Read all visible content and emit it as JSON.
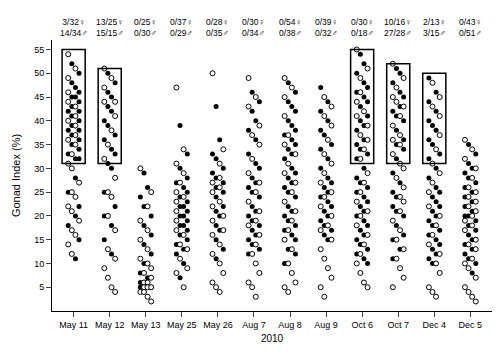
{
  "chart_data": {
    "type": "scatter",
    "y_label": "Gonad Index (%)",
    "x_label": "2010",
    "categories": [
      "May 11",
      "May 12",
      "May 13",
      "May 25",
      "May 26",
      "Aug 7",
      "Aug 8",
      "Aug 9",
      "Oct 6",
      "Oct 7",
      "Dec 4",
      "Dec 5"
    ],
    "ylim": [
      0,
      57
    ],
    "yticks": [
      5,
      10,
      15,
      20,
      25,
      30,
      35,
      40,
      45,
      50,
      55
    ],
    "grid": false,
    "series": [
      {
        "marker": "filled",
        "color": "#000000",
        "values": [
          [
            52,
            50,
            48,
            47,
            46,
            45,
            45,
            44,
            43,
            42,
            42,
            41,
            40,
            39,
            38,
            38,
            37,
            36,
            35,
            34,
            33,
            32,
            32,
            28,
            25,
            22,
            20,
            18,
            15,
            11
          ],
          [
            50,
            48,
            46,
            45,
            43,
            42,
            40,
            39,
            37,
            36,
            34,
            33,
            31,
            30,
            25,
            22,
            20,
            18,
            15,
            12
          ],
          [
            29,
            26,
            24,
            22,
            20,
            18,
            16,
            14,
            12,
            10,
            8,
            7,
            6,
            5,
            5
          ],
          [
            39,
            33,
            30,
            28,
            27,
            26,
            25,
            24,
            23,
            22,
            22,
            21,
            20,
            20,
            19,
            18,
            18,
            17,
            16,
            15,
            14,
            13,
            12,
            10,
            7
          ],
          [
            43,
            36,
            33,
            32,
            30,
            29,
            28,
            27,
            26,
            25,
            24,
            22,
            21,
            20,
            18,
            17,
            15,
            13,
            11
          ],
          [
            46,
            44,
            42,
            40,
            38,
            36,
            33,
            31,
            30,
            28,
            27,
            26,
            25,
            24,
            22,
            21,
            20,
            19,
            18,
            17,
            16,
            15,
            14,
            13,
            12
          ],
          [
            48,
            46,
            44,
            43,
            42,
            40,
            39,
            38,
            37,
            36,
            35,
            34,
            33,
            32,
            30,
            29,
            28,
            27,
            26,
            25,
            24,
            22,
            21,
            20,
            19,
            18,
            17,
            16,
            15,
            13,
            12,
            10
          ],
          [
            47,
            44,
            42,
            40,
            38,
            37,
            35,
            34,
            32,
            30,
            28,
            27,
            26,
            25,
            24,
            23,
            22,
            21,
            20,
            19,
            18,
            17,
            16,
            15
          ],
          [
            54,
            52,
            50,
            48,
            47,
            46,
            45,
            44,
            43,
            41,
            40,
            39,
            38,
            36,
            35,
            34,
            33,
            32,
            30,
            28,
            27,
            26,
            25,
            24,
            23,
            22,
            21,
            20,
            19,
            18,
            17,
            16,
            15,
            14,
            13,
            12,
            11,
            10
          ],
          [
            51,
            50,
            48,
            46,
            45,
            43,
            42,
            41,
            40,
            38,
            36,
            35,
            34,
            32,
            29,
            27,
            25,
            24,
            22,
            21,
            20,
            18,
            16,
            15,
            13,
            11
          ],
          [
            49,
            46,
            44,
            42,
            40,
            39,
            38,
            36,
            35,
            33,
            32,
            30,
            28,
            26,
            25,
            24,
            23,
            22,
            21,
            20,
            19,
            18,
            17,
            16,
            15,
            14,
            13,
            12,
            11,
            10
          ],
          [
            35,
            33,
            31,
            30,
            29,
            28,
            27,
            26,
            25,
            24,
            23,
            22,
            21,
            20,
            20,
            19,
            18,
            17,
            16,
            15,
            14,
            13,
            12,
            11,
            10,
            8
          ]
        ]
      },
      {
        "marker": "open",
        "color": "#ffffff",
        "values": [
          [
            54,
            51,
            49,
            46,
            44,
            43,
            41,
            40,
            39,
            37,
            36,
            35,
            33,
            31,
            30,
            27,
            25,
            24,
            22,
            21,
            19,
            17,
            16,
            14,
            12
          ],
          [
            51,
            49,
            47,
            44,
            44,
            41,
            38,
            35,
            32,
            28,
            25,
            24,
            20,
            17,
            13,
            11,
            9,
            7,
            5,
            4
          ],
          [
            30,
            25,
            22,
            19,
            17,
            15,
            13,
            11,
            10,
            9,
            8,
            7,
            6,
            6,
            5,
            5,
            5,
            4,
            4,
            3,
            2
          ],
          [
            47,
            34,
            31,
            29,
            27,
            25,
            24,
            23,
            21,
            19,
            17,
            16,
            14,
            13,
            11,
            9,
            8,
            5
          ],
          [
            50,
            34,
            31,
            28,
            27,
            26,
            25,
            23,
            22,
            20,
            19,
            17,
            16,
            14,
            12,
            10,
            8,
            6,
            5,
            4
          ],
          [
            49,
            45,
            43,
            39,
            37,
            35,
            32,
            29,
            27,
            25,
            23,
            21,
            19,
            18,
            16,
            14,
            12,
            10,
            8,
            6,
            5,
            3
          ],
          [
            49,
            47,
            45,
            41,
            37,
            35,
            33,
            31,
            29,
            27,
            25,
            23,
            21,
            19,
            17,
            15,
            13,
            10,
            8,
            6,
            5,
            4
          ],
          [
            45,
            43,
            41,
            39,
            36,
            33,
            31,
            29,
            27,
            25,
            24,
            22,
            20,
            18,
            17,
            15,
            13,
            11,
            9,
            7,
            5,
            3
          ],
          [
            55,
            51,
            49,
            46,
            44,
            42,
            41,
            39,
            37,
            36,
            34,
            32,
            29,
            27,
            25,
            23,
            21,
            20,
            18,
            16,
            14,
            12,
            10,
            8,
            6,
            5
          ],
          [
            52,
            49,
            47,
            45,
            44,
            43,
            41,
            39,
            37,
            36,
            35,
            33,
            31,
            30,
            28,
            26,
            24,
            23,
            21,
            19,
            17,
            15,
            13,
            11,
            9,
            7,
            5
          ],
          [
            48,
            45,
            43,
            41,
            37,
            34,
            31,
            29,
            27,
            25,
            22,
            20,
            18,
            16,
            14,
            12,
            10,
            8,
            5,
            4,
            3
          ],
          [
            36,
            34,
            32,
            30,
            28,
            26,
            25,
            24,
            23,
            22,
            21,
            20,
            19,
            18,
            17,
            15,
            14,
            13,
            11,
            10,
            9,
            7,
            5,
            4,
            3,
            2
          ]
        ]
      }
    ],
    "annotations": [
      {
        "category": "May 11",
        "lines": [
          "3/32♀",
          "14/34♂"
        ]
      },
      {
        "category": "May 12",
        "lines": [
          "13/25♀",
          "15/15♂"
        ]
      },
      {
        "category": "May 13",
        "lines": [
          "0/25♀",
          "0/30♂"
        ]
      },
      {
        "category": "May 25",
        "lines": [
          "0/37♀",
          "0/29♂"
        ]
      },
      {
        "category": "May 26",
        "lines": [
          "0/28♀",
          "0/35♂"
        ]
      },
      {
        "category": "Aug 7",
        "lines": [
          "0/30♀",
          "0/34♂"
        ]
      },
      {
        "category": "Aug 8",
        "lines": [
          "0/54♀",
          "0/38♂"
        ]
      },
      {
        "category": "Aug 9",
        "lines": [
          "0/39♀",
          "0/32♂"
        ]
      },
      {
        "category": "Oct 6",
        "lines": [
          "0/30♀",
          "0/18♂"
        ]
      },
      {
        "category": "Oct 7",
        "lines": [
          "10/16♀",
          "27/28♂"
        ]
      },
      {
        "category": "Dec 4",
        "lines": [
          "2/13♀",
          "3/15♂"
        ]
      },
      {
        "category": "Dec 5",
        "lines": [
          "0/43♀",
          "0/51♂"
        ]
      }
    ],
    "boxes": [
      {
        "category": "May 11",
        "from": 31,
        "to": 55
      },
      {
        "category": "May 12",
        "from": 31,
        "to": 51
      },
      {
        "category": "Oct 6",
        "from": 31,
        "to": 55
      },
      {
        "category": "Oct 7",
        "from": 31,
        "to": 52
      },
      {
        "category": "Dec 4",
        "from": 31,
        "to": 50
      }
    ]
  }
}
